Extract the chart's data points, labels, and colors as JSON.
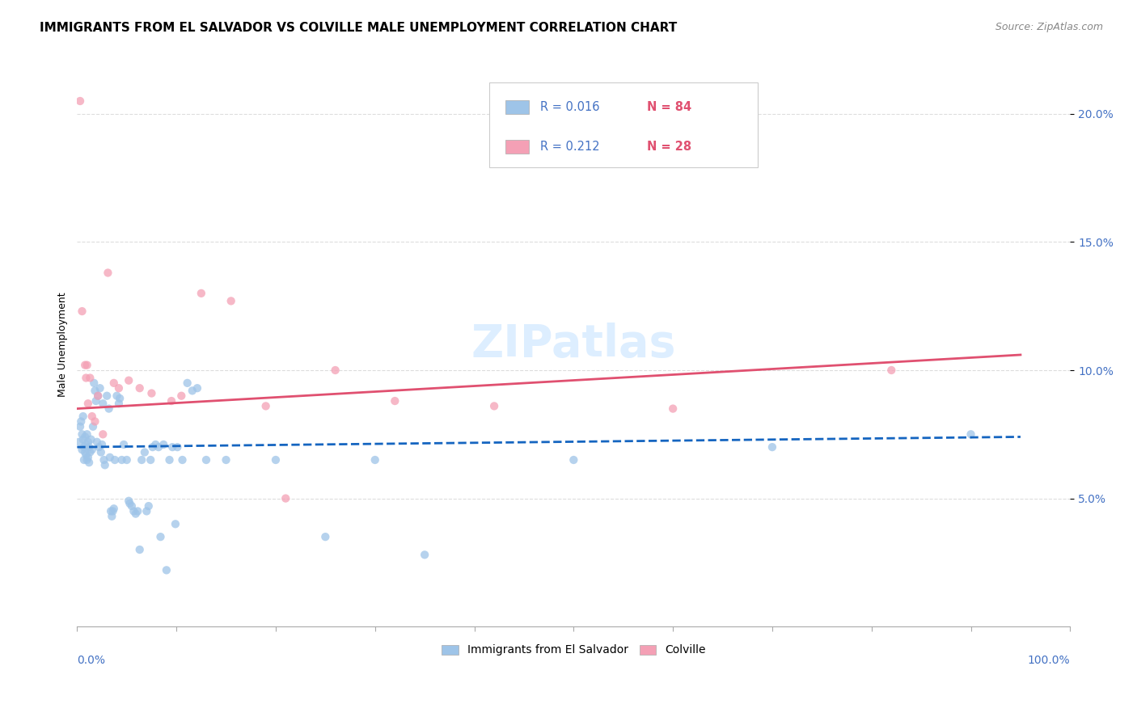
{
  "title": "IMMIGRANTS FROM EL SALVADOR VS COLVILLE MALE UNEMPLOYMENT CORRELATION CHART",
  "source": "Source: ZipAtlas.com",
  "ylabel": "Male Unemployment",
  "watermark": "ZIPatlas",
  "legend": {
    "blue_R": "0.016",
    "blue_N": "84",
    "pink_R": "0.212",
    "pink_N": "28",
    "label1": "Immigrants from El Salvador",
    "label2": "Colville"
  },
  "yticks": [
    5.0,
    10.0,
    15.0,
    20.0
  ],
  "xlim": [
    0.0,
    100.0
  ],
  "ylim": [
    0.0,
    22.0
  ],
  "blue_scatter": [
    [
      0.2,
      7.2
    ],
    [
      0.3,
      7.8
    ],
    [
      0.4,
      8.0
    ],
    [
      0.5,
      7.5
    ],
    [
      0.5,
      6.9
    ],
    [
      0.6,
      7.3
    ],
    [
      0.6,
      8.2
    ],
    [
      0.7,
      7.0
    ],
    [
      0.7,
      6.5
    ],
    [
      0.8,
      7.4
    ],
    [
      0.8,
      6.8
    ],
    [
      0.9,
      7.1
    ],
    [
      0.9,
      6.7
    ],
    [
      1.0,
      7.5
    ],
    [
      1.0,
      6.5
    ],
    [
      1.1,
      7.2
    ],
    [
      1.1,
      6.6
    ],
    [
      1.2,
      7.0
    ],
    [
      1.2,
      6.4
    ],
    [
      1.3,
      6.8
    ],
    [
      1.4,
      7.3
    ],
    [
      1.5,
      6.9
    ],
    [
      1.6,
      7.8
    ],
    [
      1.7,
      9.5
    ],
    [
      1.8,
      9.2
    ],
    [
      1.9,
      8.8
    ],
    [
      2.0,
      7.2
    ],
    [
      2.1,
      9.0
    ],
    [
      2.2,
      7.0
    ],
    [
      2.3,
      9.3
    ],
    [
      2.4,
      6.8
    ],
    [
      2.5,
      7.1
    ],
    [
      2.6,
      8.7
    ],
    [
      2.7,
      6.5
    ],
    [
      2.8,
      6.3
    ],
    [
      3.0,
      9.0
    ],
    [
      3.2,
      8.5
    ],
    [
      3.3,
      6.6
    ],
    [
      3.4,
      4.5
    ],
    [
      3.5,
      4.3
    ],
    [
      3.6,
      4.5
    ],
    [
      3.7,
      4.6
    ],
    [
      3.8,
      6.5
    ],
    [
      4.0,
      9.0
    ],
    [
      4.2,
      8.7
    ],
    [
      4.3,
      8.9
    ],
    [
      4.5,
      6.5
    ],
    [
      4.7,
      7.1
    ],
    [
      5.0,
      6.5
    ],
    [
      5.2,
      4.9
    ],
    [
      5.3,
      4.8
    ],
    [
      5.5,
      4.7
    ],
    [
      5.7,
      4.5
    ],
    [
      5.9,
      4.4
    ],
    [
      6.1,
      4.5
    ],
    [
      6.3,
      3.0
    ],
    [
      6.5,
      6.5
    ],
    [
      6.8,
      6.8
    ],
    [
      7.0,
      4.5
    ],
    [
      7.2,
      4.7
    ],
    [
      7.4,
      6.5
    ],
    [
      7.6,
      7.0
    ],
    [
      7.9,
      7.1
    ],
    [
      8.2,
      7.0
    ],
    [
      8.4,
      3.5
    ],
    [
      8.7,
      7.1
    ],
    [
      9.0,
      2.2
    ],
    [
      9.3,
      6.5
    ],
    [
      9.6,
      7.0
    ],
    [
      9.9,
      4.0
    ],
    [
      10.1,
      7.0
    ],
    [
      10.6,
      6.5
    ],
    [
      11.1,
      9.5
    ],
    [
      11.6,
      9.2
    ],
    [
      12.1,
      9.3
    ],
    [
      13.0,
      6.5
    ],
    [
      15.0,
      6.5
    ],
    [
      20.0,
      6.5
    ],
    [
      30.0,
      6.5
    ],
    [
      50.0,
      6.5
    ],
    [
      70.0,
      7.0
    ],
    [
      90.0,
      7.5
    ],
    [
      25.0,
      3.5
    ],
    [
      35.0,
      2.8
    ]
  ],
  "pink_scatter": [
    [
      0.3,
      20.5
    ],
    [
      0.5,
      12.3
    ],
    [
      0.8,
      10.2
    ],
    [
      0.9,
      9.7
    ],
    [
      1.0,
      10.2
    ],
    [
      1.1,
      8.7
    ],
    [
      1.3,
      9.7
    ],
    [
      1.5,
      8.2
    ],
    [
      1.8,
      8.0
    ],
    [
      2.1,
      9.0
    ],
    [
      2.6,
      7.5
    ],
    [
      3.1,
      13.8
    ],
    [
      3.7,
      9.5
    ],
    [
      4.2,
      9.3
    ],
    [
      5.2,
      9.6
    ],
    [
      6.3,
      9.3
    ],
    [
      7.5,
      9.1
    ],
    [
      9.5,
      8.8
    ],
    [
      10.5,
      9.0
    ],
    [
      12.5,
      13.0
    ],
    [
      15.5,
      12.7
    ],
    [
      19.0,
      8.6
    ],
    [
      21.0,
      5.0
    ],
    [
      26.0,
      10.0
    ],
    [
      32.0,
      8.8
    ],
    [
      42.0,
      8.6
    ],
    [
      82.0,
      10.0
    ],
    [
      60.0,
      8.5
    ]
  ],
  "blue_line": {
    "x0": 0.0,
    "y0": 7.0,
    "x1": 95.0,
    "y1": 7.4
  },
  "pink_line": {
    "x0": 0.0,
    "y0": 8.5,
    "x1": 95.0,
    "y1": 10.6
  },
  "blue_color": "#9EC4E8",
  "pink_color": "#F4A0B5",
  "blue_line_color": "#1565C0",
  "pink_line_color": "#E05070",
  "grid_color": "#DDDDDD",
  "title_fontsize": 11,
  "axis_label_fontsize": 9,
  "tick_fontsize": 10,
  "source_fontsize": 9,
  "watermark_color": "#DDEEFF",
  "scatter_size": 55,
  "scatter_alpha": 0.75
}
